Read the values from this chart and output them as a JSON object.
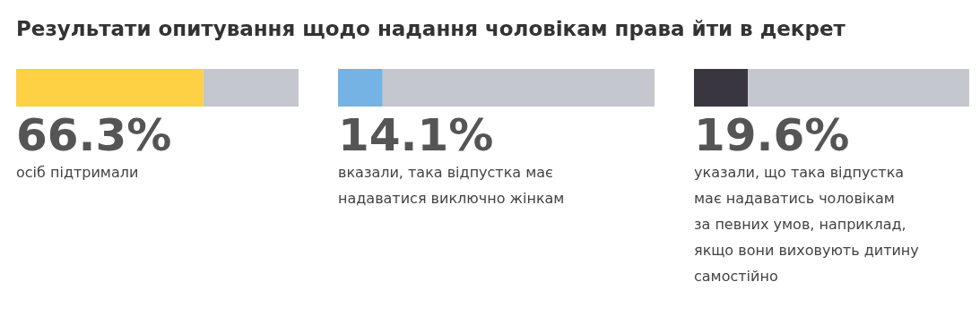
{
  "chart_data": [
    {
      "type": "bar",
      "orientation": "horizontal",
      "stacked": true,
      "title": "Результати опитування щодо  надання чоловікам права йти в декрет",
      "categories": [
        null
      ],
      "xlim": [
        0,
        100
      ],
      "series": [
        {
          "color": "#fdd143",
          "values": [
            66.3
          ],
          "value_labels": [
            "66.3%"
          ]
        },
        {
          "color": "#c4c7ce",
          "values": [
            33.7
          ]
        }
      ],
      "annotations": [
        "осіб підтримали"
      ]
    },
    {
      "type": "bar",
      "orientation": "horizontal",
      "stacked": true,
      "categories": [
        null
      ],
      "xlim": [
        0,
        100
      ],
      "series": [
        {
          "color": "#74b3e3",
          "values": [
            14.1
          ],
          "value_labels": [
            "14.1%"
          ]
        },
        {
          "color": "#c4c7ce",
          "values": [
            85.9
          ]
        }
      ],
      "annotations": [
        "вказали, така відпустка має надаватися виключно жінкам"
      ]
    },
    {
      "type": "bar",
      "orientation": "horizontal",
      "stacked": true,
      "categories": [
        null
      ],
      "xlim": [
        0,
        100
      ],
      "series": [
        {
          "color": "#3a3640",
          "values": [
            19.6
          ],
          "value_labels": [
            "19.6%"
          ]
        },
        {
          "color": "#c4c7ce",
          "values": [
            80.4
          ]
        }
      ],
      "annotations": [
        "указали, що така відпустка має надаватись чоловікам за певних умов, наприклад, якщо вони виховують дитину самостійно"
      ]
    }
  ]
}
